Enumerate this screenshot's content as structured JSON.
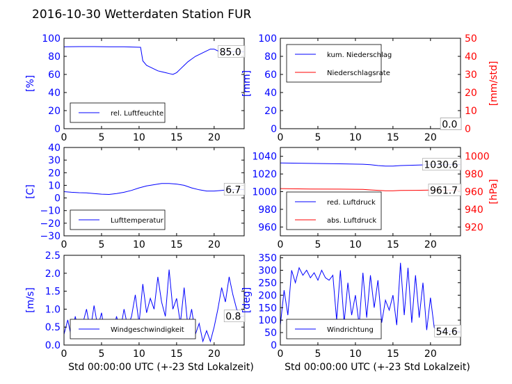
{
  "figure_title": "2016-10-30 Wetterdaten Station FUR",
  "colors": {
    "blue": "#0000ff",
    "red": "#ff0000",
    "black": "#000000"
  },
  "chart_data": [
    {
      "id": "humidity",
      "type": "line",
      "ylabel": "[%]",
      "xlabel": "",
      "xlim": [
        0,
        24
      ],
      "ylim": [
        0,
        100
      ],
      "xticks": [
        "0",
        "5",
        "10",
        "15",
        "20"
      ],
      "yticks": [
        "0",
        "20",
        "40",
        "60",
        "80",
        "100"
      ],
      "legend": [
        "rel. Luftfeuchte"
      ],
      "legend_position": "lower-left",
      "annotation": "85.0",
      "series": [
        {
          "name": "rel. Luftfeuchte",
          "color": "#0000ff",
          "x": [
            0,
            2,
            4,
            6,
            8,
            10.2,
            10.5,
            11,
            11.5,
            12,
            12.5,
            13,
            13.5,
            14,
            14.5,
            15,
            15.5,
            16,
            16.5,
            17,
            17.5,
            18,
            18.5,
            19,
            19.5,
            20,
            20.5,
            21,
            21.5,
            22,
            22.5,
            23,
            23.5,
            24
          ],
          "y": [
            90.5,
            90.8,
            90.8,
            90.5,
            90.5,
            90,
            75,
            70,
            68,
            66,
            64,
            63,
            62,
            61,
            60,
            62,
            66,
            70,
            74,
            77,
            80,
            82,
            84,
            86,
            88,
            88,
            86,
            86,
            85,
            85,
            85,
            85,
            85,
            85
          ]
        }
      ]
    },
    {
      "id": "precipitation",
      "type": "line",
      "ylabel": "[mm]",
      "ylabel_right": "[mm/std]",
      "xlabel": "",
      "xlim": [
        0,
        24
      ],
      "ylim": [
        0,
        100
      ],
      "ylim_right": [
        0,
        50
      ],
      "xticks": [
        "0",
        "5",
        "10",
        "15",
        "20"
      ],
      "yticks": [
        "0",
        "20",
        "40",
        "60",
        "80",
        "100"
      ],
      "yticks_right": [
        "0",
        "10",
        "20",
        "30",
        "40",
        "50"
      ],
      "legend": [
        "kum. Niederschlag",
        "Niederschlagsrate"
      ],
      "legend_position": "upper-left",
      "annotation": "0.0",
      "annotation_right": "0.0",
      "series": [
        {
          "name": "kum. Niederschlag",
          "color": "#0000ff",
          "axis": "left",
          "x": [
            0,
            24
          ],
          "y": [
            0,
            0
          ]
        },
        {
          "name": "Niederschlagsrate",
          "color": "#ff0000",
          "axis": "right",
          "x": [
            0,
            24
          ],
          "y": [
            0,
            0
          ]
        }
      ]
    },
    {
      "id": "temperature",
      "type": "line",
      "ylabel": "[C]",
      "xlabel": "",
      "xlim": [
        0,
        24
      ],
      "ylim": [
        -30,
        40
      ],
      "xticks": [
        "0",
        "5",
        "10",
        "15",
        "20"
      ],
      "yticks": [
        "−30",
        "−20",
        "−10",
        "0",
        "10",
        "20",
        "30",
        "40"
      ],
      "legend": [
        "Lufttemperatur"
      ],
      "legend_position": "lower-left",
      "annotation": "6.7",
      "series": [
        {
          "name": "Lufttemperatur",
          "color": "#0000ff",
          "x": [
            0,
            1,
            2,
            3,
            4,
            5,
            6,
            7,
            8,
            9,
            10,
            11,
            12,
            13,
            14,
            15,
            16,
            17,
            18,
            19,
            20,
            21,
            22,
            23,
            24
          ],
          "y": [
            5,
            4.5,
            4.2,
            4,
            3.5,
            3,
            2.8,
            3.5,
            4.5,
            6,
            8,
            9.5,
            10.5,
            11.5,
            11.5,
            11,
            10,
            8,
            6.5,
            5.5,
            5.5,
            6,
            6.5,
            6.7,
            6.7
          ]
        }
      ]
    },
    {
      "id": "pressure",
      "type": "line",
      "ylabel": "",
      "ylabel_right": "[hPa]",
      "xlabel": "",
      "xlim": [
        0,
        24
      ],
      "ylim": [
        950,
        1050
      ],
      "ylim_right": [
        910,
        1010
      ],
      "xticks": [
        "0",
        "5",
        "10",
        "15",
        "20"
      ],
      "yticks": [
        "960",
        "980",
        "1000",
        "1020",
        "1040"
      ],
      "yticks_right": [
        "920",
        "940",
        "960",
        "980",
        "1000"
      ],
      "legend": [
        "red. Luftdruck",
        "abs. Luftdruck"
      ],
      "legend_position": "lower-left",
      "annotation": "1030.6",
      "annotation_right": "961.7",
      "series": [
        {
          "name": "red. Luftdruck",
          "color": "#0000ff",
          "axis": "left",
          "x": [
            0,
            4,
            8,
            11,
            12,
            13,
            14,
            15,
            16,
            18,
            20,
            22,
            24
          ],
          "y": [
            1032.5,
            1032,
            1031.5,
            1031,
            1030.5,
            1029.5,
            1029,
            1029,
            1029.5,
            1030,
            1030.5,
            1030.6,
            1030.6
          ]
        },
        {
          "name": "abs. Luftdruck",
          "color": "#ff0000",
          "axis": "right",
          "x": [
            0,
            4,
            8,
            11,
            12,
            13,
            14,
            15,
            16,
            18,
            20,
            22,
            24
          ],
          "y": [
            963.5,
            963,
            962.8,
            962.5,
            962,
            961.5,
            961,
            961,
            961.3,
            961.5,
            961.7,
            961.7,
            961.7
          ]
        }
      ]
    },
    {
      "id": "windspeed",
      "type": "line",
      "ylabel": "[m/s]",
      "xlabel": "Std 00:00:00 UTC (+-23 Std Lokalzeit)",
      "xlim": [
        0,
        24
      ],
      "ylim": [
        0,
        2.5
      ],
      "xticks": [
        "0",
        "5",
        "10",
        "15",
        "20"
      ],
      "yticks": [
        "0.0",
        "0.5",
        "1.0",
        "1.5",
        "2.0",
        "2.5"
      ],
      "legend": [
        "Windgeschwindigkeit"
      ],
      "legend_position": "lower-left",
      "annotation": "0.8",
      "series": [
        {
          "name": "Windgeschwindigkeit",
          "color": "#0000ff",
          "x": [
            0,
            0.5,
            1,
            1.5,
            2,
            2.5,
            3,
            3.5,
            4,
            4.5,
            5,
            5.5,
            6,
            6.5,
            7,
            7.5,
            8,
            8.5,
            9,
            9.5,
            10,
            10.5,
            11,
            11.5,
            12,
            12.5,
            13,
            13.5,
            14,
            14.5,
            15,
            15.5,
            16,
            16.5,
            17,
            17.5,
            18,
            18.5,
            19,
            19.5,
            20,
            20.5,
            21,
            21.5,
            22,
            22.5,
            23,
            23.5,
            24
          ],
          "y": [
            0.3,
            0.7,
            0.2,
            0.8,
            0.3,
            0.6,
            1.0,
            0.4,
            1.1,
            0.5,
            0.9,
            0.2,
            0.7,
            0.3,
            0.8,
            0.4,
            1.0,
            0.5,
            0.8,
            1.4,
            0.6,
            1.7,
            0.9,
            1.3,
            1.0,
            1.9,
            1.2,
            0.8,
            2.1,
            1.0,
            1.3,
            0.6,
            1.6,
            0.5,
            1.0,
            0.3,
            0.6,
            0.1,
            0.4,
            0.1,
            0.5,
            1.0,
            1.6,
            1.2,
            1.9,
            1.4,
            1.0,
            0.8,
            0.8
          ]
        }
      ]
    },
    {
      "id": "winddirection",
      "type": "line",
      "ylabel": "[deg]",
      "xlabel": "Std 00:00:00 UTC (+-23 Std Lokalzeit)",
      "xlim": [
        0,
        24
      ],
      "ylim": [
        0,
        360
      ],
      "xticks": [
        "0",
        "5",
        "10",
        "15",
        "20"
      ],
      "yticks": [
        "0",
        "50",
        "100",
        "150",
        "200",
        "250",
        "300",
        "350"
      ],
      "legend": [
        "Windrichtung"
      ],
      "legend_position": "lower-left",
      "annotation": "54.6",
      "series": [
        {
          "name": "Windrichtung",
          "color": "#0000ff",
          "x": [
            0,
            0.5,
            1,
            1.5,
            2,
            2.5,
            3,
            3.5,
            4,
            4.5,
            5,
            5.5,
            6,
            6.5,
            7,
            7.5,
            8,
            8.5,
            9,
            9.5,
            10,
            10.5,
            11,
            11.5,
            12,
            12.5,
            13,
            13.5,
            14,
            14.5,
            15,
            15.5,
            16,
            16.5,
            17,
            17.5,
            18,
            18.5,
            19,
            19.5,
            20,
            20.5,
            21,
            21.5,
            22,
            22.5,
            23,
            23.5,
            24
          ],
          "y": [
            80,
            220,
            120,
            300,
            250,
            310,
            280,
            300,
            270,
            290,
            260,
            300,
            270,
            260,
            280,
            100,
            300,
            90,
            250,
            120,
            200,
            80,
            290,
            110,
            280,
            150,
            260,
            90,
            180,
            140,
            200,
            80,
            330,
            120,
            310,
            90,
            280,
            110,
            250,
            60,
            190,
            70,
            60,
            55,
            60,
            55,
            55,
            55,
            55
          ]
        }
      ]
    }
  ]
}
